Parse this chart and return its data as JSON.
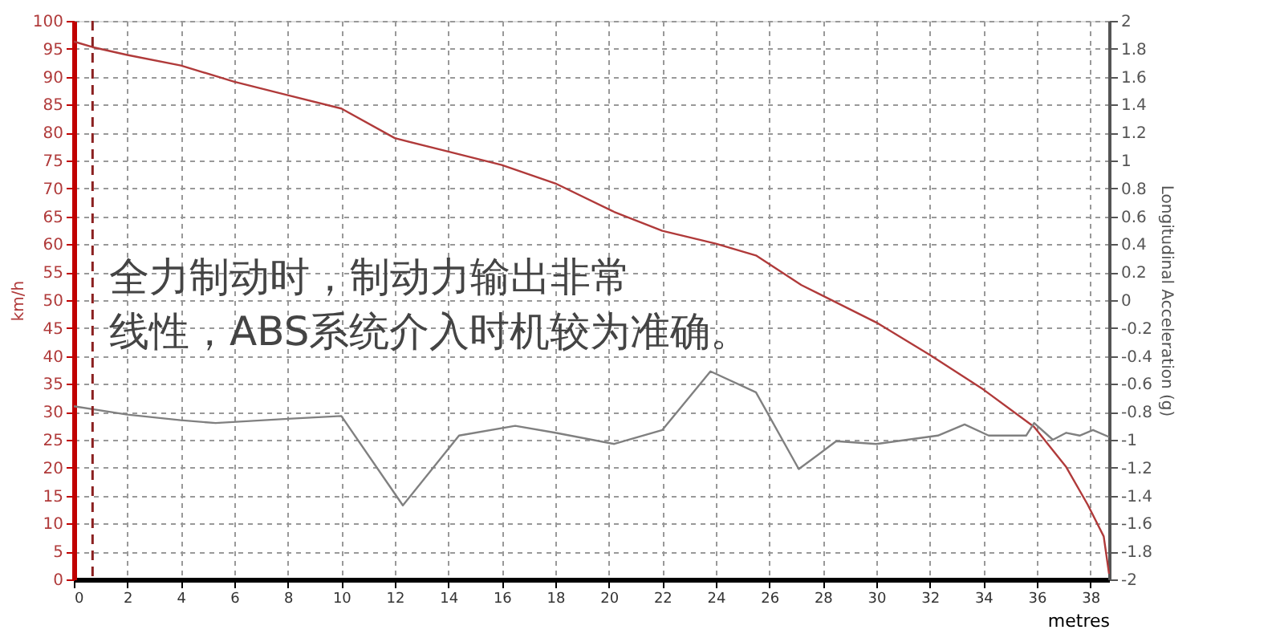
{
  "chart_data": {
    "type": "line",
    "xlabel": "metres",
    "ylabel": "km/h",
    "y2label": "Longitudinal Acceleration (g)",
    "x": [
      0,
      0.7,
      2,
      4,
      6,
      8,
      10,
      12,
      14,
      16,
      18,
      20.2,
      22,
      24,
      25.5,
      27.2,
      30,
      32,
      34,
      35.9,
      37.1,
      37.9,
      38.5,
      38.7
    ],
    "series": [
      {
        "color": "#b03a3a",
        "values": [
          96.3,
          95.3,
          93.9,
          92,
          89.1,
          86.7,
          84.3,
          79,
          76.6,
          74.2,
          70.9,
          65.8,
          62.4,
          60.1,
          58.0,
          52.7,
          46.0,
          40.2,
          34,
          27.3,
          20.1,
          13.4,
          7.7,
          1
        ]
      },
      {
        "color": "#808080",
        "axis": "y2",
        "x": [
          0,
          2,
          4,
          5.3,
          8,
          10,
          12.3,
          14.4,
          16.5,
          18,
          20.2,
          22,
          23.8,
          25.5,
          27.1,
          28.5,
          30,
          32.3,
          33.3,
          34.2,
          35.6,
          35.9,
          36.6,
          37.1,
          37.6,
          38.1,
          38.7
        ],
        "values": [
          -0.76,
          -0.82,
          -0.86,
          -0.88,
          -0.85,
          -0.83,
          -1.47,
          -0.97,
          -0.9,
          -0.95,
          -1.03,
          -0.93,
          -0.51,
          -0.66,
          -1.21,
          -1.01,
          -1.03,
          -0.97,
          -0.89,
          -0.97,
          -0.97,
          -0.88,
          -1.0,
          -0.95,
          -0.97,
          -0.93,
          -0.98
        ]
      }
    ],
    "xlim": [
      0,
      38.7
    ],
    "xticks": [
      0,
      2,
      4,
      6,
      8,
      10,
      12,
      14,
      16,
      18,
      20,
      22,
      24,
      26,
      28,
      30,
      32,
      34,
      36,
      38
    ],
    "ylim": [
      0,
      100
    ],
    "yticks": [
      0,
      5,
      10,
      15,
      20,
      25,
      30,
      35,
      40,
      45,
      50,
      55,
      60,
      65,
      70,
      75,
      80,
      85,
      90,
      95,
      100
    ],
    "y2lim": [
      -2,
      2
    ],
    "y2ticks": [
      -2,
      -1.8,
      -1.6,
      -1.4,
      -1.2,
      -1,
      -0.8,
      -0.6,
      -0.4,
      -0.2,
      0,
      0.2,
      0.4,
      0.6,
      0.8,
      1,
      1.2,
      1.4,
      1.6,
      1.8,
      2
    ],
    "ref_lines": [
      {
        "axis": "x",
        "value": 0.7,
        "color": "#8b2020",
        "line_style": "dashed"
      }
    ],
    "annotations": [
      "全力制动时，制动力输出非常线性，ABS系统介入时机较为准确。"
    ],
    "grid": true,
    "marker": "none",
    "line_style": "solid"
  }
}
